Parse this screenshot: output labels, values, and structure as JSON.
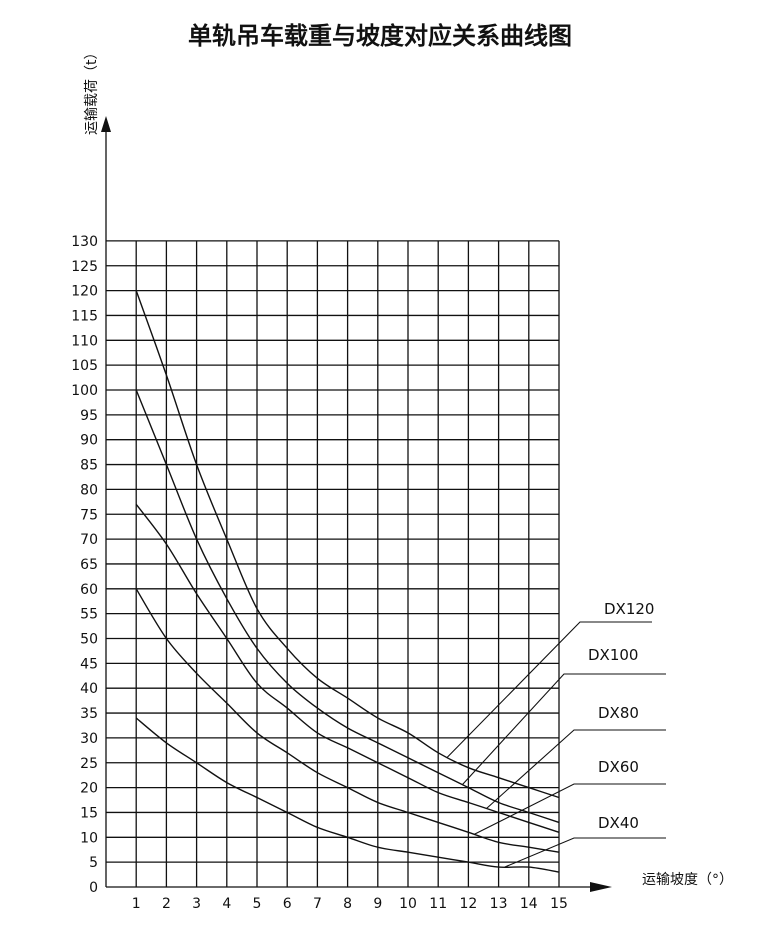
{
  "chart_data": {
    "type": "line",
    "title": "单轨吊车载重与坡度对应关系曲线图",
    "xlabel": "运输坡度（°）",
    "ylabel": "运输载荷（t）",
    "xlim": [
      0,
      15
    ],
    "ylim": [
      0,
      130
    ],
    "x_ticks": [
      "1",
      "2",
      "3",
      "4",
      "5",
      "6",
      "7",
      "8",
      "9",
      "10",
      "11",
      "12",
      "13",
      "14",
      "15"
    ],
    "y_ticks": [
      "0",
      "5",
      "10",
      "15",
      "20",
      "25",
      "30",
      "35",
      "40",
      "45",
      "50",
      "55",
      "60",
      "65",
      "70",
      "75",
      "80",
      "85",
      "90",
      "95",
      "100",
      "105",
      "110",
      "115",
      "120",
      "125",
      "130"
    ],
    "grid": true,
    "series": [
      {
        "name": "DX120",
        "x": [
          1,
          2,
          3,
          4,
          5,
          6,
          7,
          8,
          9,
          10,
          11,
          12,
          13,
          14,
          15
        ],
        "y": [
          120,
          103,
          85,
          70,
          56,
          48,
          42,
          38,
          34,
          31,
          27,
          24,
          22,
          20,
          18
        ]
      },
      {
        "name": "DX100",
        "x": [
          1,
          2,
          3,
          4,
          5,
          6,
          7,
          8,
          9,
          10,
          11,
          12,
          13,
          14,
          15
        ],
        "y": [
          100,
          85,
          70,
          58,
          48,
          41,
          36,
          32,
          29,
          26,
          23,
          20,
          17,
          15,
          13
        ]
      },
      {
        "name": "DX80",
        "x": [
          1,
          2,
          3,
          4,
          5,
          6,
          7,
          8,
          9,
          10,
          11,
          12,
          13,
          14,
          15
        ],
        "y": [
          77,
          69,
          59,
          50,
          41,
          36,
          31,
          28,
          25,
          22,
          19,
          17,
          15,
          13,
          11
        ]
      },
      {
        "name": "DX60",
        "x": [
          1,
          2,
          3,
          4,
          5,
          6,
          7,
          8,
          9,
          10,
          11,
          12,
          13,
          14,
          15
        ],
        "y": [
          60,
          50,
          43,
          37,
          31,
          27,
          23,
          20,
          17,
          15,
          13,
          11,
          9,
          8,
          7
        ]
      },
      {
        "name": "DX40",
        "x": [
          1,
          2,
          3,
          4,
          5,
          6,
          7,
          8,
          9,
          10,
          11,
          12,
          13,
          14,
          15
        ],
        "y": [
          34,
          29,
          25,
          21,
          18,
          15,
          12,
          10,
          8,
          7,
          6,
          5,
          4,
          4,
          3
        ]
      }
    ],
    "legend_placement": "right"
  }
}
